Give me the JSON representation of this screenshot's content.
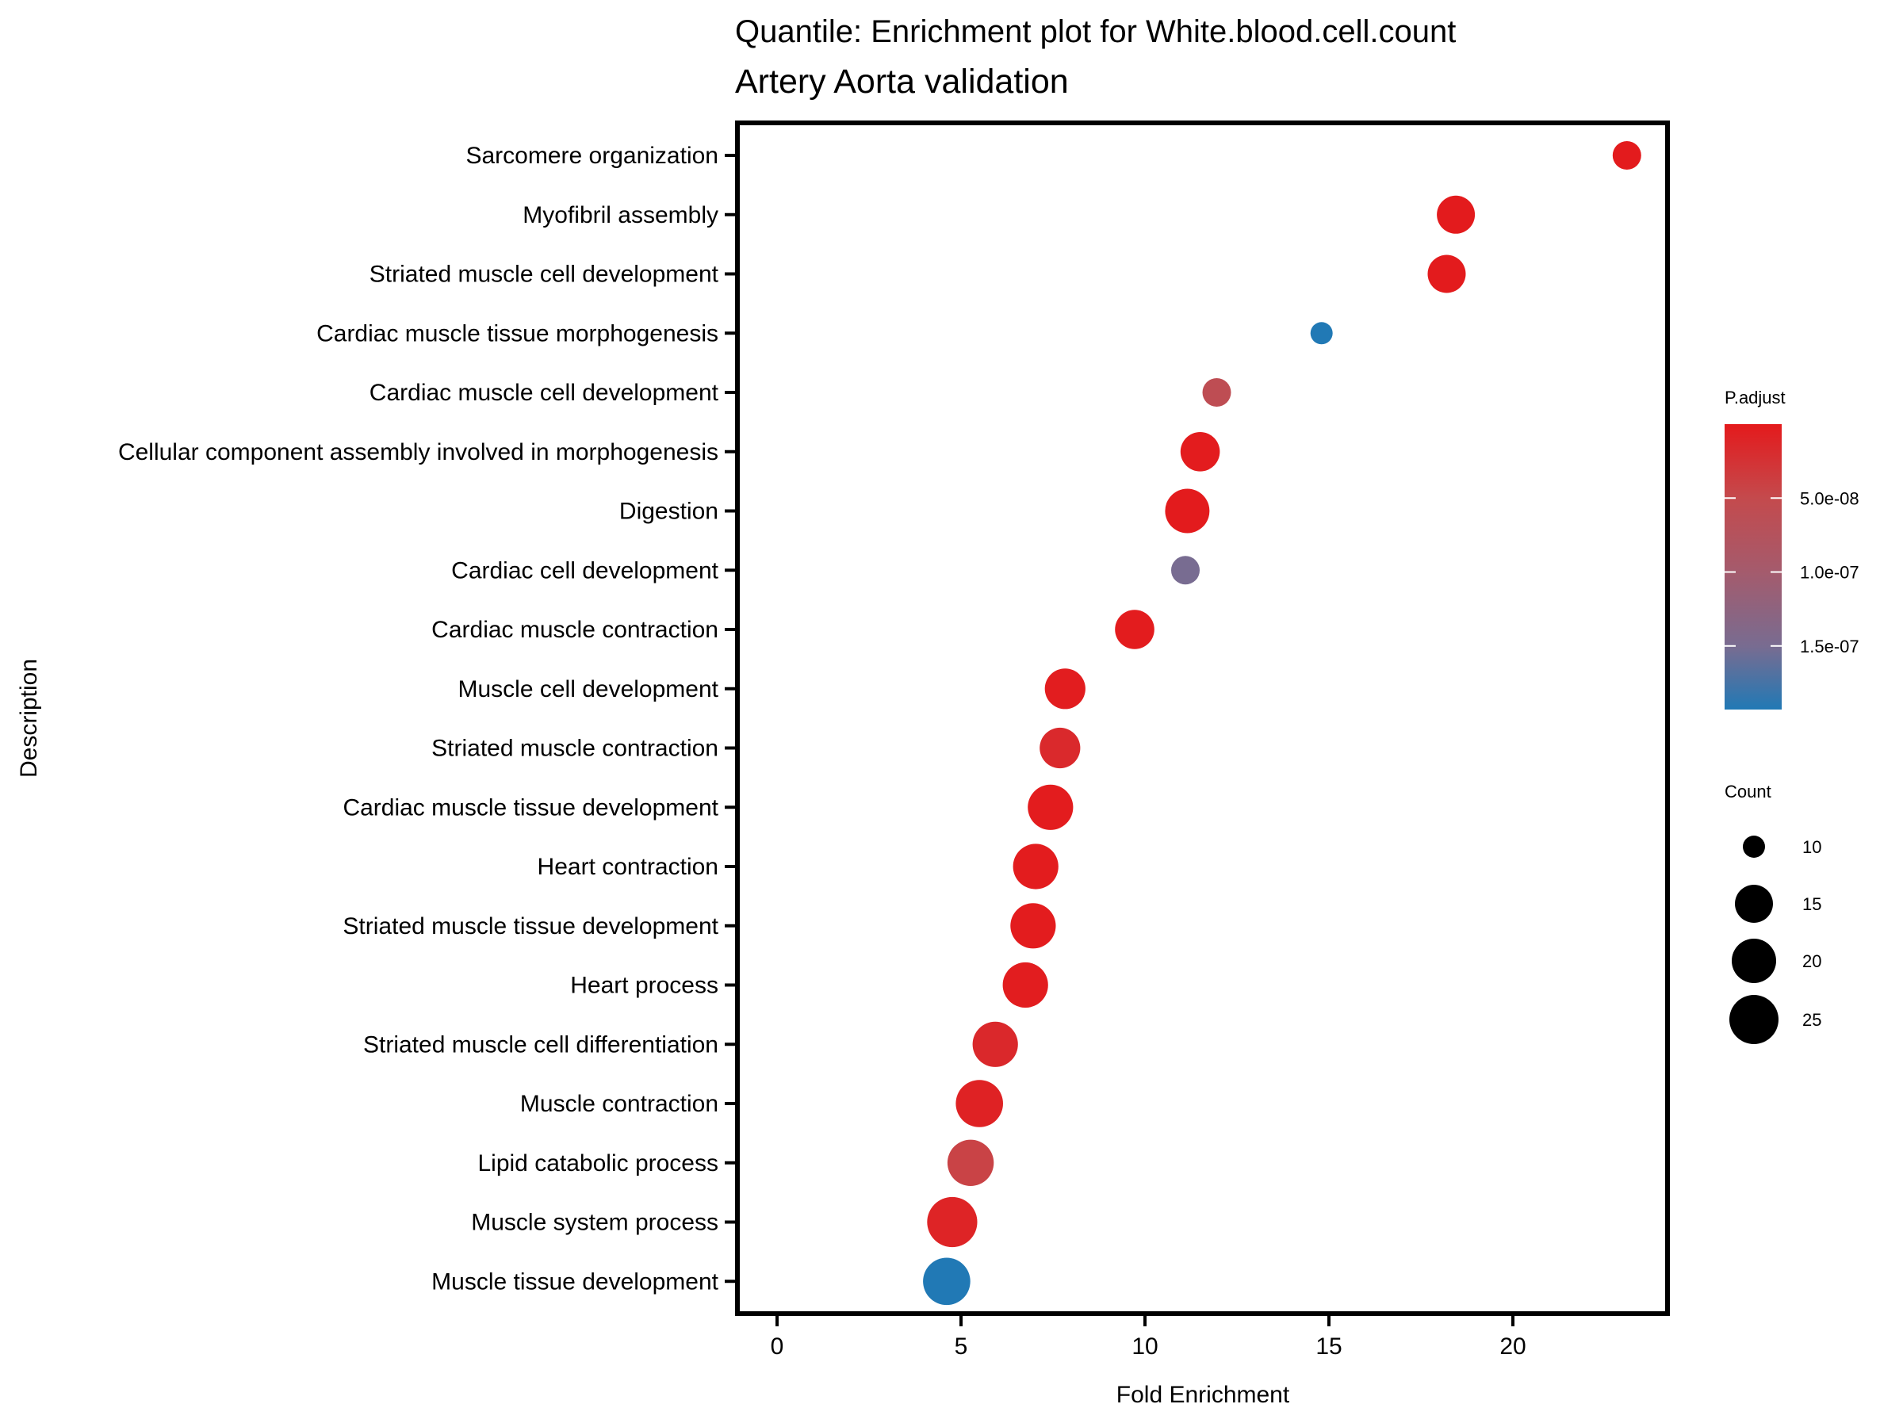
{
  "chart_data": {
    "type": "scatter",
    "subtype": "dotplot",
    "title": "Quantile: Enrichment plot for White.blood.cell.count",
    "subtitle": "Artery Aorta validation",
    "xlabel": "Fold Enrichment",
    "ylabel": "Description",
    "xlim": [
      -1.1,
      24.2
    ],
    "xticks": [
      0,
      5,
      10,
      15,
      20
    ],
    "xtick_labels": [
      "0",
      "5",
      "10",
      "15",
      "20"
    ],
    "grid": false,
    "categories": [
      "Sarcomere organization",
      "Myofibril assembly",
      "Striated muscle cell development",
      "Cardiac muscle tissue morphogenesis",
      "Cardiac muscle cell development",
      "Cellular component assembly involved in morphogenesis",
      "Digestion",
      "Cardiac cell development",
      "Cardiac muscle contraction",
      "Muscle cell development",
      "Striated muscle contraction",
      "Cardiac muscle tissue development",
      "Heart contraction",
      "Striated muscle tissue development",
      "Heart process",
      "Striated muscle cell differentiation",
      "Muscle contraction",
      "Lipid catabolic process",
      "Muscle system process",
      "Muscle tissue development"
    ],
    "points": [
      {
        "description": "Sarcomere organization",
        "fold_enrichment": 23.1,
        "count": 12,
        "p_adjust": 1e-09
      },
      {
        "description": "Myofibril assembly",
        "fold_enrichment": 18.45,
        "count": 15,
        "p_adjust": 1e-09
      },
      {
        "description": "Striated muscle cell development",
        "fold_enrichment": 18.2,
        "count": 15,
        "p_adjust": 1e-09
      },
      {
        "description": "Cardiac muscle tissue morphogenesis",
        "fold_enrichment": 14.8,
        "count": 10,
        "p_adjust": 1.93e-07
      },
      {
        "description": "Cardiac muscle cell development",
        "fold_enrichment": 11.95,
        "count": 12,
        "p_adjust": 6e-08
      },
      {
        "description": "Cellular component assembly involved in morphogenesis",
        "fold_enrichment": 11.5,
        "count": 16,
        "p_adjust": 2e-09
      },
      {
        "description": "Digestion",
        "fold_enrichment": 11.15,
        "count": 20,
        "p_adjust": 1e-09
      },
      {
        "description": "Cardiac cell development",
        "fold_enrichment": 11.1,
        "count": 12,
        "p_adjust": 1.5e-07
      },
      {
        "description": "Cardiac muscle contraction",
        "fold_enrichment": 9.72,
        "count": 16,
        "p_adjust": 2e-09
      },
      {
        "description": "Muscle cell development",
        "fold_enrichment": 7.83,
        "count": 17,
        "p_adjust": 3e-09
      },
      {
        "description": "Striated muscle contraction",
        "fold_enrichment": 7.69,
        "count": 17,
        "p_adjust": 1.6e-08
      },
      {
        "description": "Cardiac muscle tissue development",
        "fold_enrichment": 7.43,
        "count": 21,
        "p_adjust": 2e-09
      },
      {
        "description": "Heart contraction",
        "fold_enrichment": 7.03,
        "count": 21,
        "p_adjust": 2e-09
      },
      {
        "description": "Striated muscle tissue development",
        "fold_enrichment": 6.96,
        "count": 21,
        "p_adjust": 2e-09
      },
      {
        "description": "Heart process",
        "fold_enrichment": 6.75,
        "count": 21,
        "p_adjust": 3e-09
      },
      {
        "description": "Striated muscle cell differentiation",
        "fold_enrichment": 5.93,
        "count": 21,
        "p_adjust": 1.5e-08
      },
      {
        "description": "Muscle contraction",
        "fold_enrichment": 5.5,
        "count": 23,
        "p_adjust": 8e-09
      },
      {
        "description": "Lipid catabolic process",
        "fold_enrichment": 5.26,
        "count": 22,
        "p_adjust": 4.3e-08
      },
      {
        "description": "Muscle system process",
        "fold_enrichment": 4.76,
        "count": 26,
        "p_adjust": 1e-08
      },
      {
        "description": "Muscle tissue development",
        "fold_enrichment": 4.61,
        "count": 23,
        "p_adjust": 1.93e-07
      }
    ],
    "color_legend": {
      "title": "P.adjust",
      "range": [
        0,
        1.93e-07
      ],
      "low_color": "#e41a1c",
      "high_color": "#2179b5",
      "ticks": [
        5e-08,
        1e-07,
        1.5e-07
      ],
      "tick_labels": [
        "5.0e-08",
        "1.0e-07",
        "1.5e-07"
      ],
      "reverse": true
    },
    "size_legend": {
      "title": "Count",
      "values": [
        10,
        15,
        20,
        25
      ],
      "labels": [
        "10",
        "15",
        "20",
        "25"
      ]
    },
    "legend_position": "right"
  }
}
